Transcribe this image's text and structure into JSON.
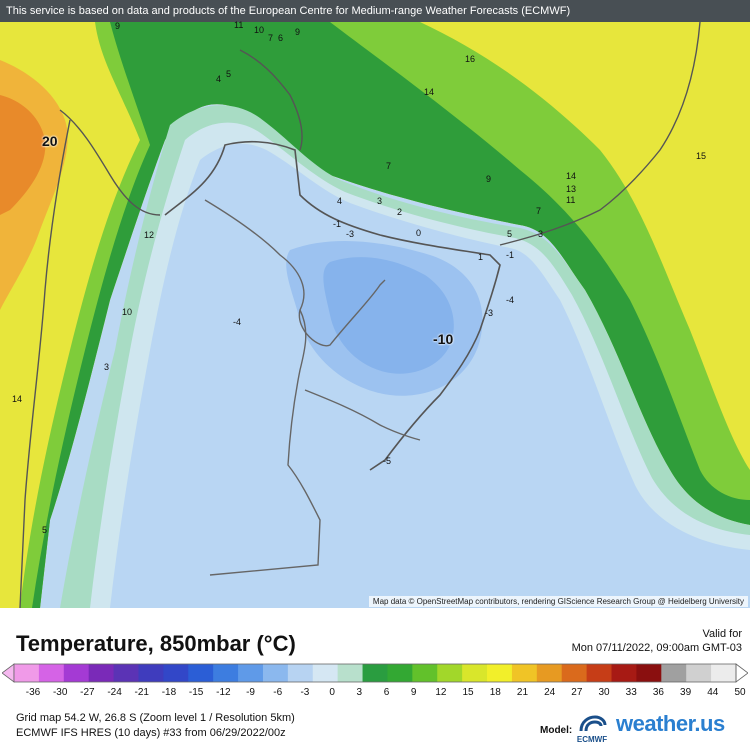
{
  "banner": "This service is based on data and products of the European Centre for Medium-range Weather Forecasts (ECMWF)",
  "attribution": "Map data © OpenStreetMap contributors, rendering GIScience Research Group @ Heidelberg University",
  "contour_labels": [
    {
      "id": "label-9-nw",
      "text": "9"
    },
    {
      "id": "label-11",
      "text": "11"
    },
    {
      "id": "label-10",
      "text": "10"
    },
    {
      "id": "label-7-n",
      "text": "7"
    },
    {
      "id": "label-6",
      "text": "6"
    },
    {
      "id": "label-9-n",
      "text": "9"
    },
    {
      "id": "label-5-n",
      "text": "5"
    },
    {
      "id": "label-4-n",
      "text": "4"
    },
    {
      "id": "label-16",
      "text": "16"
    },
    {
      "id": "label-14-n",
      "text": "14"
    },
    {
      "id": "label-20",
      "text": "20"
    },
    {
      "id": "label-15",
      "text": "15"
    },
    {
      "id": "label-14-e",
      "text": "14"
    },
    {
      "id": "label-13",
      "text": "13"
    },
    {
      "id": "label-11-e",
      "text": "11"
    },
    {
      "id": "label-7-c",
      "text": "7"
    },
    {
      "id": "label-9-c",
      "text": "9"
    },
    {
      "id": "label-7-e",
      "text": "7"
    },
    {
      "id": "label-5-e",
      "text": "5"
    },
    {
      "id": "label-3-e",
      "text": "3"
    },
    {
      "id": "label-3-c",
      "text": "3"
    },
    {
      "id": "label-2",
      "text": "2"
    },
    {
      "id": "label-0",
      "text": "0"
    },
    {
      "id": "label-minus1-c",
      "text": "-1"
    },
    {
      "id": "label-minus3-c",
      "text": "-3"
    },
    {
      "id": "label-4-c",
      "text": "4"
    },
    {
      "id": "label-12",
      "text": "12"
    },
    {
      "id": "label-1",
      "text": "1"
    },
    {
      "id": "label-minus1-e",
      "text": "-1"
    },
    {
      "id": "label-minus4-e",
      "text": "-4"
    },
    {
      "id": "label-minus3-e",
      "text": "-3"
    },
    {
      "id": "label-10-w",
      "text": "10"
    },
    {
      "id": "label-minus4-w",
      "text": "-4"
    },
    {
      "id": "label-minus10",
      "text": "-10"
    },
    {
      "id": "label-3-w",
      "text": "3"
    },
    {
      "id": "label-14-w",
      "text": "14"
    },
    {
      "id": "label-minus5",
      "text": "-5"
    },
    {
      "id": "label-5-sw",
      "text": "5"
    }
  ],
  "legend": {
    "title": "Temperature, 850mbar (°C)",
    "valid_label": "Valid for",
    "valid_time": "Mon 07/11/2022, 09:00am GMT-03",
    "ticks": [
      "-36",
      "-30",
      "-27",
      "-24",
      "-21",
      "-18",
      "-15",
      "-12",
      "-9",
      "-6",
      "-3",
      "0",
      "3",
      "6",
      "9",
      "12",
      "15",
      "18",
      "21",
      "24",
      "27",
      "30",
      "33",
      "36",
      "39",
      "44",
      "50"
    ],
    "colors": [
      "#f09ae8",
      "#d563e6",
      "#a43ad4",
      "#7a2ab8",
      "#5b33b5",
      "#3f3cbd",
      "#3247c8",
      "#2b5ed6",
      "#3d7de0",
      "#5f9ae8",
      "#8bb8ee",
      "#b7d3f2",
      "#d5e7f3",
      "#b8e0cc",
      "#2a9d40",
      "#33a833",
      "#62c12b",
      "#a2d72a",
      "#d9e62b",
      "#f2ef2a",
      "#f0c426",
      "#e79a22",
      "#da6a1c",
      "#c63d17",
      "#a71a14",
      "#8a0f0f",
      "#a0a0a0",
      "#d0d0d0",
      "#ececec"
    ]
  },
  "meta": {
    "grid": "Grid map 54.2 W, 26.8 S (Zoom level 1 / Resolution 5km)",
    "run": "ECMWF IFS HRES (10 days) #33 from 06/29/2022/00z",
    "model_label": "Model:",
    "ecmwf_text": "ECMWF",
    "brand": "weather.us"
  }
}
